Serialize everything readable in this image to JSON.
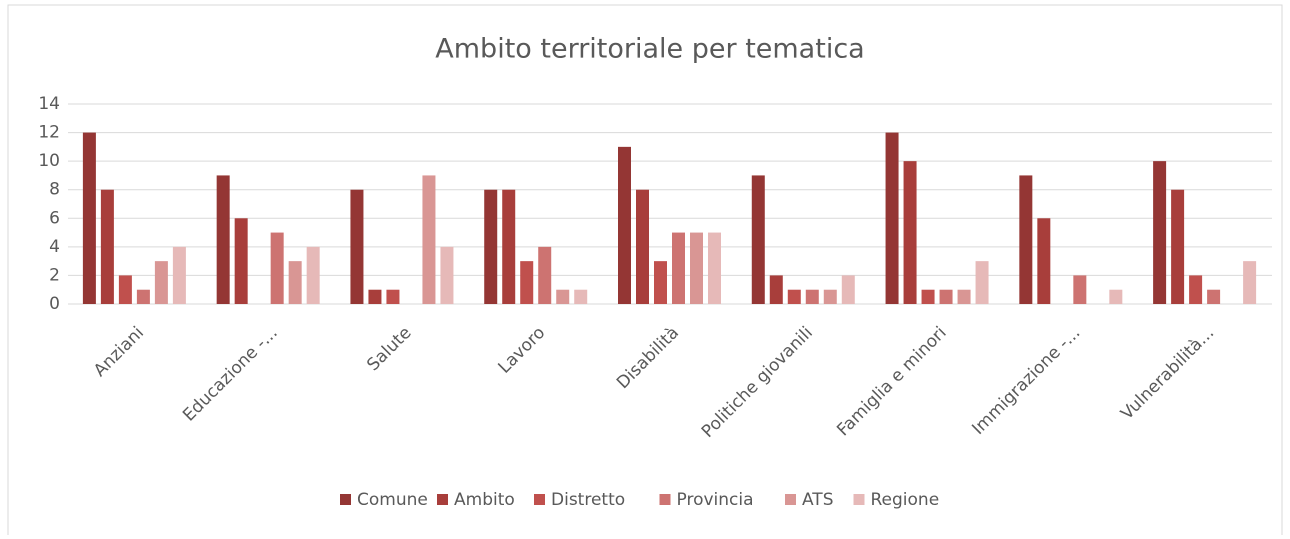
{
  "chart_data": {
    "type": "bar",
    "title": "Ambito territoriale per tematica",
    "categories": [
      "Anziani",
      "Educazione -...",
      "Salute",
      "Lavoro",
      "Disabilità",
      "Politiche giovanili",
      "Famiglia e minori",
      "Immigrazione -...",
      "Vulnerabilità..."
    ],
    "series": [
      {
        "name": "Comune",
        "color": "#943634",
        "values": [
          12,
          9,
          8,
          8,
          11,
          9,
          12,
          9,
          10
        ]
      },
      {
        "name": "Ambito",
        "color": "#a83e3b",
        "values": [
          8,
          6,
          1,
          8,
          8,
          2,
          10,
          6,
          8
        ]
      },
      {
        "name": "Distretto",
        "color": "#c0504d",
        "values": [
          2,
          null,
          1,
          3,
          3,
          1,
          1,
          null,
          2
        ]
      },
      {
        "name": "Provincia",
        "color": "#cd7371",
        "values": [
          1,
          5,
          null,
          4,
          5,
          1,
          1,
          2,
          1
        ]
      },
      {
        "name": "ATS",
        "color": "#d99694",
        "values": [
          3,
          3,
          9,
          1,
          5,
          1,
          1,
          null,
          null
        ]
      },
      {
        "name": "Regione",
        "color": "#e6b9b8",
        "values": [
          4,
          4,
          4,
          1,
          5,
          2,
          3,
          1,
          3
        ]
      }
    ],
    "ylim": [
      0,
      14
    ],
    "yticks": [
      0,
      2,
      4,
      6,
      8,
      10,
      12,
      14
    ],
    "grid": true,
    "legend": "bottom"
  }
}
